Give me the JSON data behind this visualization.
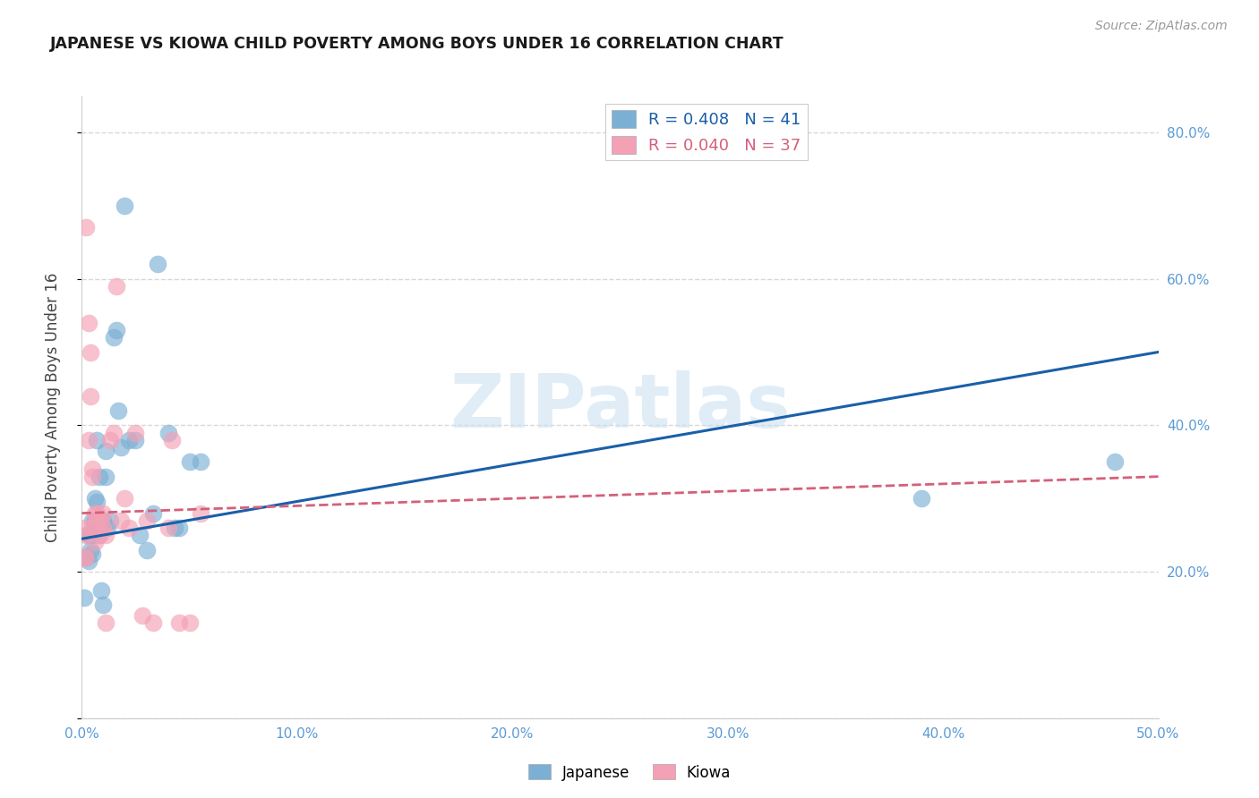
{
  "title": "JAPANESE VS KIOWA CHILD POVERTY AMONG BOYS UNDER 16 CORRELATION CHART",
  "source": "Source: ZipAtlas.com",
  "ylabel": "Child Poverty Among Boys Under 16",
  "japanese_color": "#7bafd4",
  "kiowa_color": "#f4a0b5",
  "japanese_line_color": "#1a5fa8",
  "kiowa_line_color": "#d4607a",
  "legend_jp": "R = 0.408   N = 41",
  "legend_ki": "R = 0.040   N = 37",
  "legend_labels": [
    "Japanese",
    "Kiowa"
  ],
  "japanese_x": [
    0.001,
    0.002,
    0.003,
    0.003,
    0.004,
    0.004,
    0.005,
    0.005,
    0.005,
    0.006,
    0.006,
    0.007,
    0.007,
    0.008,
    0.008,
    0.009,
    0.009,
    0.01,
    0.01,
    0.011,
    0.011,
    0.012,
    0.013,
    0.015,
    0.016,
    0.017,
    0.018,
    0.02,
    0.022,
    0.025,
    0.027,
    0.03,
    0.033,
    0.035,
    0.04,
    0.043,
    0.045,
    0.05,
    0.055,
    0.39,
    0.48
  ],
  "japanese_y": [
    0.165,
    0.22,
    0.25,
    0.215,
    0.23,
    0.25,
    0.27,
    0.25,
    0.225,
    0.27,
    0.3,
    0.38,
    0.295,
    0.25,
    0.33,
    0.265,
    0.175,
    0.27,
    0.155,
    0.365,
    0.33,
    0.26,
    0.27,
    0.52,
    0.53,
    0.42,
    0.37,
    0.7,
    0.38,
    0.38,
    0.25,
    0.23,
    0.28,
    0.62,
    0.39,
    0.26,
    0.26,
    0.35,
    0.35,
    0.3,
    0.35
  ],
  "kiowa_x": [
    0.001,
    0.001,
    0.002,
    0.002,
    0.002,
    0.003,
    0.003,
    0.004,
    0.004,
    0.005,
    0.005,
    0.005,
    0.006,
    0.006,
    0.007,
    0.007,
    0.008,
    0.009,
    0.01,
    0.01,
    0.011,
    0.011,
    0.013,
    0.015,
    0.016,
    0.018,
    0.02,
    0.022,
    0.025,
    0.028,
    0.03,
    0.033,
    0.04,
    0.042,
    0.045,
    0.05,
    0.055
  ],
  "kiowa_y": [
    0.26,
    0.22,
    0.25,
    0.22,
    0.67,
    0.54,
    0.38,
    0.5,
    0.44,
    0.34,
    0.33,
    0.26,
    0.28,
    0.24,
    0.28,
    0.27,
    0.25,
    0.27,
    0.26,
    0.28,
    0.13,
    0.25,
    0.38,
    0.39,
    0.59,
    0.27,
    0.3,
    0.26,
    0.39,
    0.14,
    0.27,
    0.13,
    0.26,
    0.38,
    0.13,
    0.13,
    0.28
  ],
  "jp_line_x": [
    0.0,
    0.5
  ],
  "jp_line_y": [
    0.245,
    0.5
  ],
  "ki_line_x": [
    0.0,
    0.5
  ],
  "ki_line_y": [
    0.28,
    0.33
  ],
  "xlim": [
    0.0,
    0.5
  ],
  "ylim": [
    0.0,
    0.85
  ],
  "xticks": [
    0.0,
    0.1,
    0.2,
    0.3,
    0.4,
    0.5
  ],
  "xticklabels": [
    "0.0%",
    "10.0%",
    "20.0%",
    "30.0%",
    "40.0%",
    "50.0%"
  ],
  "yticks": [
    0.0,
    0.2,
    0.4,
    0.6,
    0.8
  ],
  "yticklabels_right": [
    "",
    "20.0%",
    "40.0%",
    "60.0%",
    "80.0%"
  ],
  "tick_color": "#5b9bd5",
  "watermark": "ZIPatlas",
  "watermark_color": "#c8dff0",
  "background_color": "#ffffff",
  "grid_color": "#d8d8d8"
}
